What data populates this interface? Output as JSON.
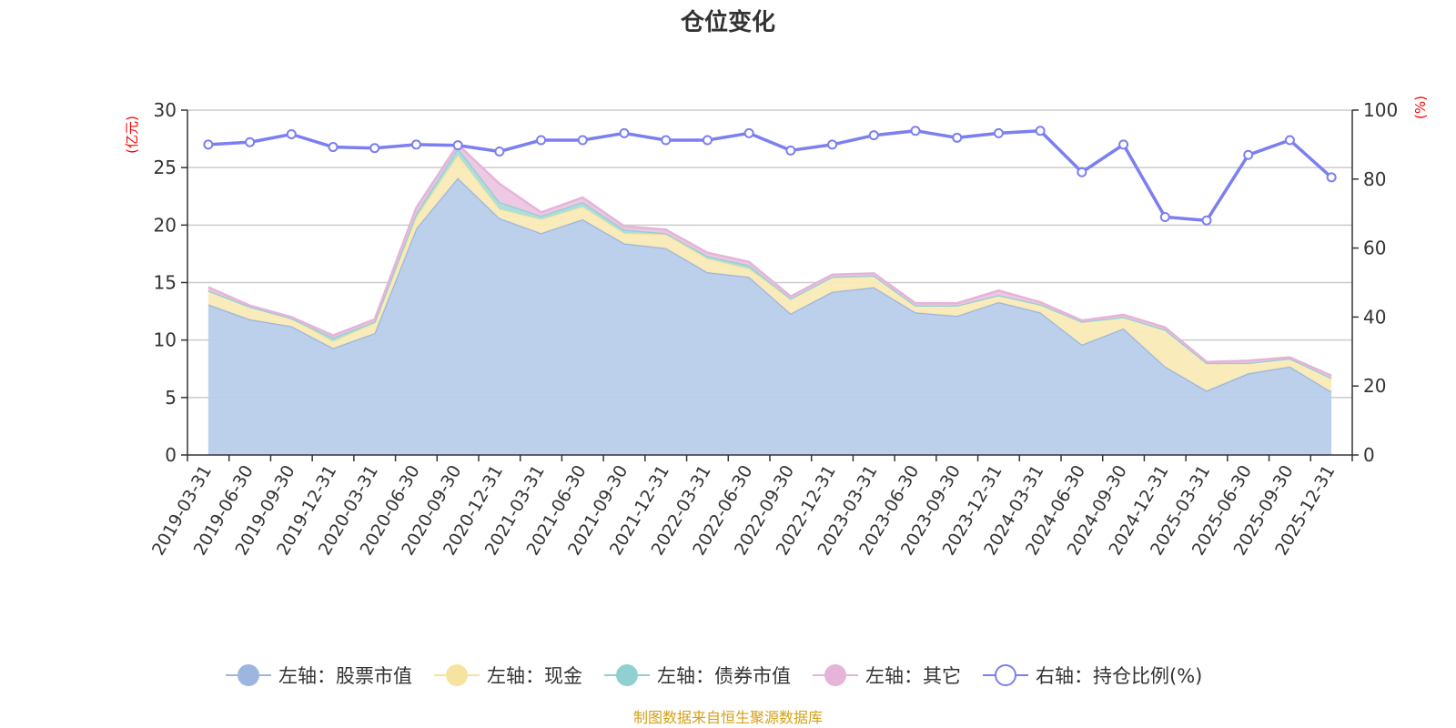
{
  "chart_data": {
    "type": "area",
    "title": "仓位变化",
    "left_unit": "(亿元)",
    "right_unit": "(%)",
    "categories": [
      "2019-03-31",
      "2019-06-30",
      "2019-09-30",
      "2019-12-31",
      "2020-03-31",
      "2020-06-30",
      "2020-09-30",
      "2020-12-31",
      "2021-03-31",
      "2021-06-30",
      "2021-09-30",
      "2021-12-31",
      "2022-03-31",
      "2022-06-30",
      "2022-09-30",
      "2022-12-31",
      "2023-03-31",
      "2023-06-30",
      "2023-09-30",
      "2023-12-31",
      "2024-03-31",
      "2024-06-30",
      "2024-09-30",
      "2024-12-31",
      "2025-03-31",
      "2025-06-30",
      "2025-09-30",
      "2025-12-31"
    ],
    "left_axis": {
      "min": 0,
      "max": 30,
      "ticks": [
        "0",
        "5",
        "10",
        "15",
        "20",
        "25",
        "30"
      ]
    },
    "right_axis": {
      "min": 0,
      "max": 100,
      "ticks": [
        "0",
        "20",
        "40",
        "60",
        "80",
        "100"
      ]
    },
    "stacked_series": [
      {
        "name": "左轴：股票市值",
        "color": "#9db6e0",
        "fill": "#b8cdea",
        "values": [
          13.1,
          11.8,
          11.2,
          9.3,
          10.6,
          19.7,
          24.1,
          20.6,
          19.3,
          20.5,
          18.4,
          18.0,
          15.9,
          15.5,
          12.3,
          14.2,
          14.6,
          12.4,
          12.1,
          13.3,
          12.4,
          9.6,
          11.0,
          7.7,
          5.6,
          7.1,
          7.7,
          5.5
        ]
      },
      {
        "name": "左轴：现金",
        "color": "#f6e3a0",
        "fill": "#faeab7",
        "values": [
          1.2,
          1.1,
          0.7,
          0.6,
          0.9,
          1.0,
          2.0,
          0.8,
          1.2,
          1.1,
          0.9,
          1.2,
          1.2,
          0.7,
          1.3,
          1.3,
          1.0,
          0.6,
          0.9,
          0.6,
          0.7,
          2.0,
          1.0,
          3.2,
          2.4,
          0.9,
          0.7,
          1.2
        ]
      },
      {
        "name": "左轴：债券市值",
        "color": "#90d0d0",
        "fill": "#a9dbdb",
        "values": [
          0,
          0,
          0,
          0.3,
          0.1,
          0.3,
          0.6,
          0.6,
          0.3,
          0.4,
          0.3,
          0.1,
          0.2,
          0.3,
          0,
          0,
          0,
          0,
          0,
          0,
          0,
          0,
          0,
          0,
          0,
          0,
          0,
          0
        ]
      },
      {
        "name": "左轴：其它",
        "color": "#e6b3d9",
        "fill": "#ecc6e2",
        "values": [
          0.3,
          0.1,
          0.1,
          0.2,
          0.2,
          0.5,
          0.3,
          1.6,
          0.3,
          0.4,
          0.3,
          0.3,
          0.3,
          0.3,
          0.2,
          0.2,
          0.2,
          0.2,
          0.2,
          0.4,
          0.2,
          0.1,
          0.2,
          0.2,
          0.1,
          0.2,
          0.1,
          0.2
        ]
      }
    ],
    "line_series": {
      "name": "右轴：持仓比例(%)",
      "color": "#7b7ff0",
      "values": [
        90.0,
        90.7,
        93.0,
        89.3,
        89.0,
        90.0,
        89.8,
        88.0,
        91.3,
        91.3,
        93.3,
        91.3,
        91.3,
        93.3,
        88.3,
        90.0,
        92.7,
        94.0,
        92.0,
        93.3,
        94.0,
        82.0,
        90.0,
        69.0,
        68.0,
        87.0,
        91.3,
        80.5
      ]
    },
    "legend": [
      {
        "label": "左轴：股票市值",
        "color": "#9db6e0",
        "hollow": false
      },
      {
        "label": "左轴：现金",
        "color": "#f6e3a0",
        "hollow": false
      },
      {
        "label": "左轴：债券市值",
        "color": "#90d0d0",
        "hollow": false
      },
      {
        "label": "左轴：其它",
        "color": "#e6b3d9",
        "hollow": false
      },
      {
        "label": "右轴：持仓比例(%)",
        "color": "#7b7ff0",
        "hollow": true
      }
    ],
    "source": "制图数据来自恒生聚源数据库"
  }
}
